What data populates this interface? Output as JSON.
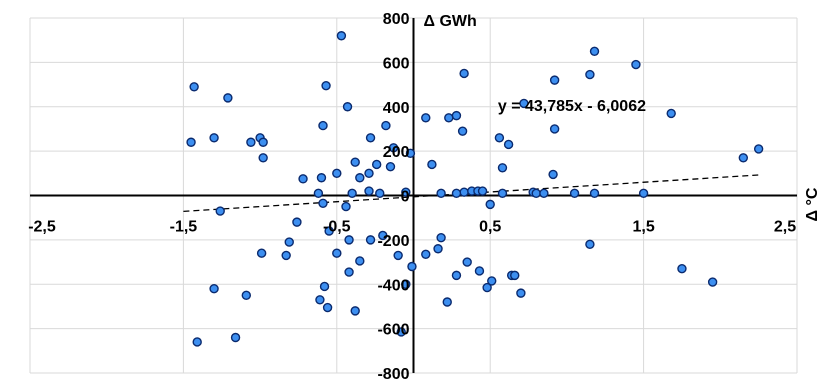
{
  "chart_data": {
    "type": "scatter",
    "title": "",
    "xlabel": "Δ °C",
    "ylabel": "Δ GWh",
    "xlim": [
      -2.5,
      2.5
    ],
    "ylim": [
      -800,
      800
    ],
    "x_ticks": [
      -2.5,
      -1.5,
      -0.5,
      0.5,
      1.5,
      2.5
    ],
    "x_tick_labels": [
      "-2,5",
      "-1,5",
      "-0,5",
      "0,5",
      "1,5",
      "2,5"
    ],
    "y_ticks": [
      -800,
      -600,
      -400,
      -200,
      0,
      200,
      400,
      600,
      800
    ],
    "y_tick_labels": [
      "-800",
      "-600",
      "-400",
      "-200",
      "0",
      "200",
      "400",
      "600",
      "800"
    ],
    "grid": true,
    "point_color": "#3d8ff0",
    "point_edge_color": "#0a2a6e",
    "trendline": {
      "type": "linear",
      "slope": 43.785,
      "intercept": -6.0062,
      "x_range": [
        -1.5,
        2.25
      ],
      "equation": "y = 43,785x - 6,0062"
    },
    "series": [
      {
        "points": [
          [
            -0.47,
            720
          ],
          [
            -1.43,
            490
          ],
          [
            -1.21,
            440
          ],
          [
            -0.57,
            495
          ],
          [
            -0.43,
            400
          ],
          [
            -0.59,
            315
          ],
          [
            -1.45,
            240
          ],
          [
            -1.3,
            260
          ],
          [
            -1.06,
            240
          ],
          [
            -1.0,
            260
          ],
          [
            -0.98,
            240
          ],
          [
            -0.98,
            170
          ],
          [
            -0.28,
            260
          ],
          [
            -0.18,
            315
          ],
          [
            -0.13,
            215
          ],
          [
            -0.24,
            140
          ],
          [
            -0.29,
            100
          ],
          [
            -0.35,
            80
          ],
          [
            -0.38,
            150
          ],
          [
            -0.5,
            100
          ],
          [
            -0.6,
            80
          ],
          [
            -0.72,
            75
          ],
          [
            -0.15,
            130
          ],
          [
            -0.22,
            10
          ],
          [
            -0.29,
            20
          ],
          [
            -0.4,
            10
          ],
          [
            -0.62,
            10
          ],
          [
            -0.05,
            15
          ],
          [
            -0.02,
            190
          ],
          [
            -1.26,
            -70
          ],
          [
            -0.44,
            -50
          ],
          [
            -0.59,
            -35
          ],
          [
            -0.76,
            -120
          ],
          [
            -0.55,
            -160
          ],
          [
            -0.2,
            -180
          ],
          [
            -0.28,
            -200
          ],
          [
            -0.42,
            -200
          ],
          [
            -0.81,
            -210
          ],
          [
            -0.83,
            -270
          ],
          [
            -0.99,
            -260
          ],
          [
            -0.5,
            -260
          ],
          [
            -0.35,
            -295
          ],
          [
            -0.42,
            -345
          ],
          [
            -0.1,
            -270
          ],
          [
            -0.01,
            -320
          ],
          [
            -0.05,
            -400
          ],
          [
            -0.58,
            -410
          ],
          [
            -0.61,
            -470
          ],
          [
            -0.56,
            -505
          ],
          [
            -0.38,
            -520
          ],
          [
            -1.09,
            -450
          ],
          [
            -1.3,
            -420
          ],
          [
            -1.16,
            -640
          ],
          [
            -1.41,
            -660
          ],
          [
            -0.08,
            -615
          ],
          [
            0.08,
            350
          ],
          [
            0.12,
            140
          ],
          [
            0.18,
            10
          ],
          [
            0.32,
            290
          ],
          [
            0.33,
            550
          ],
          [
            0.28,
            360
          ],
          [
            0.23,
            350
          ],
          [
            0.33,
            15
          ],
          [
            0.28,
            10
          ],
          [
            0.38,
            20
          ],
          [
            0.42,
            20
          ],
          [
            0.45,
            20
          ],
          [
            0.5,
            -40
          ],
          [
            0.56,
            260
          ],
          [
            0.58,
            125
          ],
          [
            0.62,
            230
          ],
          [
            0.72,
            415
          ],
          [
            0.78,
            15
          ],
          [
            0.8,
            10
          ],
          [
            0.92,
            520
          ],
          [
            0.92,
            300
          ],
          [
            0.91,
            95
          ],
          [
            0.85,
            10
          ],
          [
            1.05,
            10
          ],
          [
            1.15,
            545
          ],
          [
            1.18,
            650
          ],
          [
            1.18,
            10
          ],
          [
            1.45,
            590
          ],
          [
            1.5,
            10
          ],
          [
            1.68,
            370
          ],
          [
            2.15,
            170
          ],
          [
            2.25,
            210
          ],
          [
            0.58,
            10
          ],
          [
            0.08,
            -265
          ],
          [
            0.18,
            -190
          ],
          [
            0.16,
            -240
          ],
          [
            0.28,
            -360
          ],
          [
            0.35,
            -300
          ],
          [
            0.43,
            -340
          ],
          [
            0.51,
            -385
          ],
          [
            0.64,
            -360
          ],
          [
            0.66,
            -360
          ],
          [
            0.7,
            -440
          ],
          [
            0.48,
            -415
          ],
          [
            0.22,
            -480
          ],
          [
            1.15,
            -220
          ],
          [
            1.75,
            -330
          ],
          [
            1.95,
            -390
          ]
        ]
      }
    ]
  }
}
